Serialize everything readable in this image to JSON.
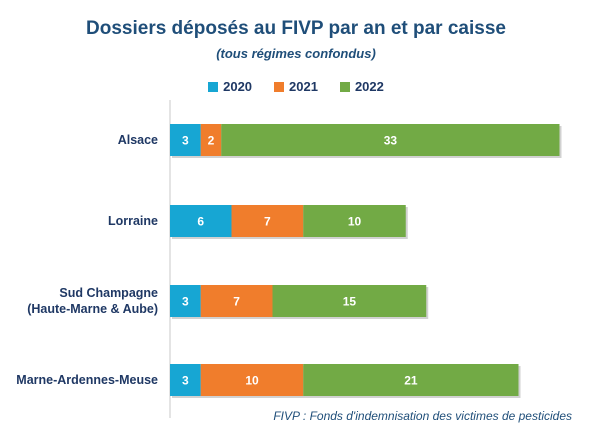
{
  "chart_data": {
    "type": "bar",
    "orientation": "horizontal",
    "stacked": true,
    "title": "Dossiers déposés au FIVP par an et par caisse",
    "subtitle": "(tous régimes confondus)",
    "categories": [
      [
        "Alsace"
      ],
      [
        "Lorraine"
      ],
      [
        "Sud Champagne",
        "(Haute-Marne & Aube)"
      ],
      [
        "Marne-Ardennes-Meuse"
      ]
    ],
    "series": [
      {
        "name": "2020",
        "color": "#17a6d3",
        "values": [
          3,
          6,
          3,
          3
        ]
      },
      {
        "name": "2021",
        "color": "#f07d2c",
        "values": [
          2,
          7,
          7,
          10
        ]
      },
      {
        "name": "2022",
        "color": "#72aa45",
        "values": [
          33,
          10,
          15,
          21
        ]
      }
    ],
    "legend_position": "top",
    "grid": false
  },
  "footnote": "FIVP : Fonds d'indemnisation des victimes de pesticides"
}
